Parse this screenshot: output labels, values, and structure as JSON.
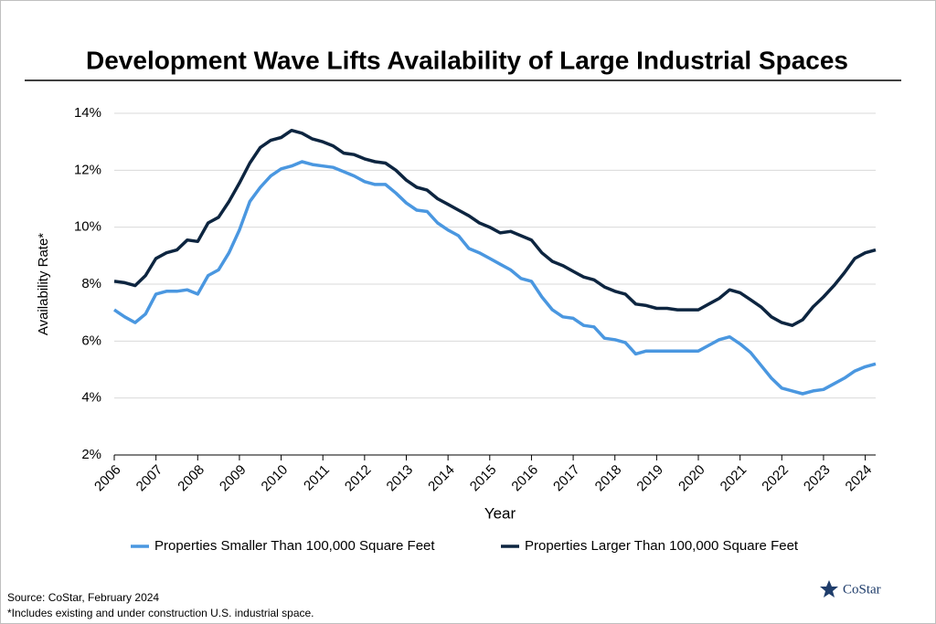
{
  "chart_data": {
    "type": "line",
    "title": "Development Wave Lifts Availability of Large Industrial Spaces",
    "x_label": "Year",
    "y_label": "Availability Rate*",
    "x": [
      2006,
      2006.25,
      2006.5,
      2006.75,
      2007,
      2007.25,
      2007.5,
      2007.75,
      2008,
      2008.25,
      2008.5,
      2008.75,
      2009,
      2009.25,
      2009.5,
      2009.75,
      2010,
      2010.25,
      2010.5,
      2010.75,
      2011,
      2011.25,
      2011.5,
      2011.75,
      2012,
      2012.25,
      2012.5,
      2012.75,
      2013,
      2013.25,
      2013.5,
      2013.75,
      2014,
      2014.25,
      2014.5,
      2014.75,
      2015,
      2015.25,
      2015.5,
      2015.75,
      2016,
      2016.25,
      2016.5,
      2016.75,
      2017,
      2017.25,
      2017.5,
      2017.75,
      2018,
      2018.25,
      2018.5,
      2018.75,
      2019,
      2019.25,
      2019.5,
      2019.75,
      2020,
      2020.25,
      2020.5,
      2020.75,
      2021,
      2021.25,
      2021.5,
      2021.75,
      2022,
      2022.25,
      2022.5,
      2022.75,
      2023,
      2023.25,
      2023.5,
      2023.75,
      2024,
      2024.25
    ],
    "series": [
      {
        "name": "Properties Smaller Than 100,000 Square Feet",
        "color": "#4a97e0",
        "values": [
          7.1,
          6.85,
          6.65,
          6.95,
          7.65,
          7.75,
          7.75,
          7.8,
          7.65,
          8.3,
          8.5,
          9.1,
          9.9,
          10.9,
          11.4,
          11.8,
          12.05,
          12.15,
          12.3,
          12.2,
          12.15,
          12.1,
          11.95,
          11.8,
          11.6,
          11.5,
          11.5,
          11.2,
          10.85,
          10.6,
          10.55,
          10.15,
          9.9,
          9.7,
          9.25,
          9.1,
          8.9,
          8.7,
          8.5,
          8.2,
          8.1,
          7.55,
          7.1,
          6.85,
          6.8,
          6.55,
          6.5,
          6.1,
          6.05,
          5.95,
          5.55,
          5.65,
          5.65,
          5.65,
          5.65,
          5.65,
          5.65,
          5.85,
          6.05,
          6.15,
          5.9,
          5.6,
          5.15,
          4.7,
          4.35,
          4.25,
          4.15,
          4.25,
          4.3,
          4.5,
          4.7,
          4.95,
          5.1,
          5.2
        ]
      },
      {
        "name": "Properties Larger Than 100,000 Square Feet",
        "color": "#0d2540",
        "values": [
          8.1,
          8.05,
          7.95,
          8.3,
          8.9,
          9.1,
          9.2,
          9.55,
          9.5,
          10.15,
          10.35,
          10.9,
          11.55,
          12.25,
          12.8,
          13.05,
          13.15,
          13.4,
          13.3,
          13.1,
          13.0,
          12.85,
          12.6,
          12.55,
          12.4,
          12.3,
          12.25,
          12.0,
          11.65,
          11.4,
          11.3,
          11.0,
          10.8,
          10.6,
          10.4,
          10.15,
          10.0,
          9.8,
          9.85,
          9.7,
          9.55,
          9.1,
          8.8,
          8.65,
          8.45,
          8.25,
          8.15,
          7.9,
          7.75,
          7.65,
          7.3,
          7.25,
          7.15,
          7.15,
          7.1,
          7.1,
          7.1,
          7.3,
          7.5,
          7.8,
          7.7,
          7.45,
          7.2,
          6.85,
          6.65,
          6.55,
          6.75,
          7.2,
          7.55,
          7.95,
          8.4,
          8.9,
          9.1,
          9.2
        ]
      }
    ],
    "xlim": [
      2006,
      2024.25
    ],
    "xticks": [
      2006,
      2007,
      2008,
      2009,
      2010,
      2011,
      2012,
      2013,
      2014,
      2015,
      2016,
      2017,
      2018,
      2019,
      2020,
      2021,
      2022,
      2023,
      2024
    ],
    "ylim": [
      2,
      14
    ],
    "yticks": [
      {
        "value": 2,
        "label": "2%"
      },
      {
        "value": 4,
        "label": "4%"
      },
      {
        "value": 6,
        "label": "6%"
      },
      {
        "value": 8,
        "label": "8%"
      },
      {
        "value": 10,
        "label": "10%"
      },
      {
        "value": 12,
        "label": "12%"
      },
      {
        "value": 14,
        "label": "14%"
      }
    ],
    "grid": true,
    "legend": "bottom"
  },
  "footer": {
    "source": "Source: CoStar, February 2024",
    "note": "*Includes existing and under construction U.S. industrial space.",
    "logo": "CoStar"
  }
}
